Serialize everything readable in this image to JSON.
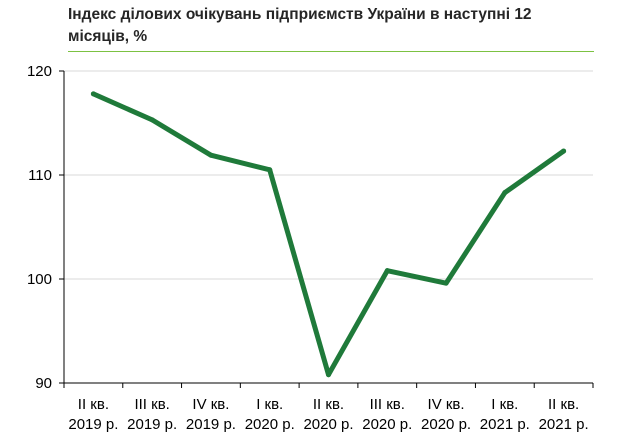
{
  "chart_data": {
    "type": "line",
    "title": "Індекс ділових очікувань підприємств України в наступні 12 місяців, %",
    "xlabel": "",
    "ylabel": "",
    "categories": [
      [
        "II кв.",
        "2019 р."
      ],
      [
        "III кв.",
        "2019 р."
      ],
      [
        "IV кв.",
        "2019 р."
      ],
      [
        "I кв.",
        "2020 р."
      ],
      [
        "II кв.",
        "2020 р."
      ],
      [
        "III кв.",
        "2020 р."
      ],
      [
        "IV кв.",
        "2020 р."
      ],
      [
        "I кв.",
        "2021 р."
      ],
      [
        "II кв.",
        "2021 р."
      ]
    ],
    "series": [
      {
        "color": "#1f7a3a",
        "values": [
          117.8,
          115.3,
          111.9,
          110.5,
          90.8,
          100.8,
          99.6,
          108.3,
          112.3
        ]
      }
    ],
    "ylim": [
      90,
      120
    ],
    "yticks": [
      90,
      100,
      110,
      120
    ],
    "grid": "horizontal",
    "legend": "none",
    "gridColor": "#d9d9d9",
    "axisColor": "#000000",
    "ruleColor": "#7cc242"
  }
}
